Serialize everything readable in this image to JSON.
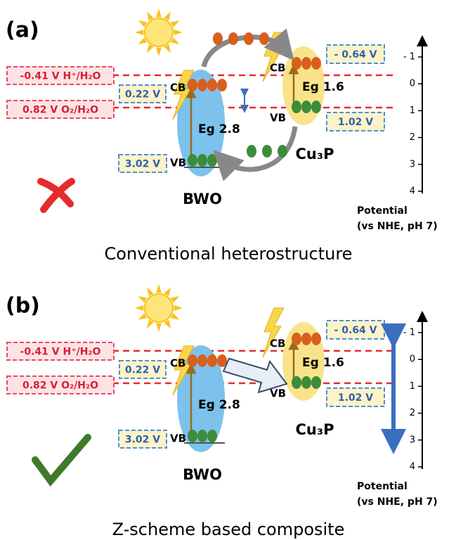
{
  "panels": [
    {
      "label": "(a)",
      "h_level": "-0.41  V H⁺/H₂O",
      "o_level": "0.82 V O₂/H₂O",
      "bwo": {
        "cb_value": "0.22 V",
        "vb_value": "3.02 V",
        "cb": "CB",
        "vb": "VB",
        "gap": "Eg 2.8",
        "name": "BWO"
      },
      "cu3p": {
        "cb_value": "- 0.64 V",
        "vb_value": "1.02 V",
        "cb": "CB",
        "vb": "VB",
        "gap": "Eg 1.6",
        "name": "Cu₃P"
      },
      "axis": {
        "ticks": [
          "- 1",
          "0",
          "1",
          "2",
          "3",
          "4"
        ],
        "title": "Potential",
        "subtitle": "(vs NHE, pH 7)"
      },
      "caption": "Conventional heterostructure"
    },
    {
      "label": "(b)",
      "h_level": "-0.41  V H⁺/H₂O",
      "o_level": "0.82 V O₂/H₂O",
      "bwo": {
        "cb_value": "0.22 V",
        "vb_value": "3.02 V",
        "cb": "CB",
        "vb": "VB",
        "gap": "Eg 2.8",
        "name": "BWO"
      },
      "cu3p": {
        "cb_value": "- 0.64 V",
        "vb_value": "1.02 V",
        "cb": "CB",
        "vb": "VB",
        "gap": "Eg 1.6",
        "name": "Cu₃P"
      },
      "axis": {
        "ticks": [
          "- 1",
          "0",
          "1",
          "2",
          "3",
          "4"
        ],
        "title": "Potential",
        "subtitle": "(vs NHE, pH 7)"
      },
      "caption": "Z-scheme based composite"
    }
  ]
}
